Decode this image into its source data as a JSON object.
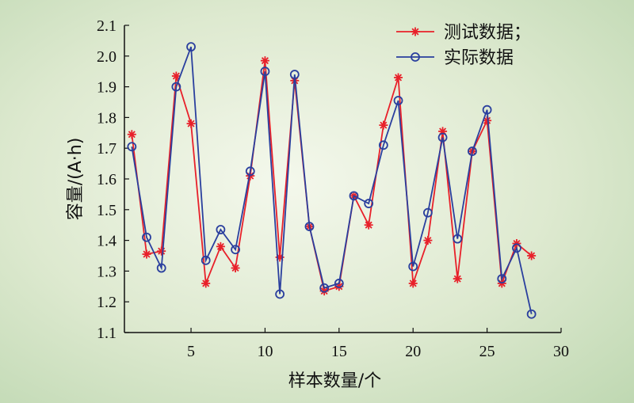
{
  "chart_data": {
    "type": "line",
    "xlabel": "样本数量/个",
    "ylabel": "容量/(A·h)",
    "xlim": [
      0.5,
      30
    ],
    "ylim": [
      1.1,
      2.1
    ],
    "xticks": [
      5,
      10,
      15,
      20,
      25,
      30
    ],
    "xtick_labels": [
      "5",
      "10",
      "15",
      "20",
      "25",
      "30"
    ],
    "yticks": [
      1.1,
      1.2,
      1.3,
      1.4,
      1.5,
      1.6,
      1.7,
      1.8,
      1.9,
      2.0,
      2.1
    ],
    "ytick_labels": [
      "1.1",
      "1.2",
      "1.3",
      "1.4",
      "1.5",
      "1.6",
      "1.7",
      "1.8",
      "1.9",
      "2.0",
      "2.1"
    ],
    "grid": false,
    "legend_position": "top-right",
    "x": [
      1,
      2,
      3,
      4,
      5,
      6,
      7,
      8,
      9,
      10,
      11,
      12,
      13,
      14,
      15,
      16,
      17,
      18,
      19,
      20,
      21,
      22,
      23,
      24,
      25,
      26,
      27,
      28
    ],
    "series": [
      {
        "name": "测试数据；",
        "color": "#e8202a",
        "marker": "star",
        "values": [
          1.745,
          1.355,
          1.365,
          1.935,
          1.78,
          1.26,
          1.38,
          1.31,
          1.61,
          1.985,
          1.345,
          1.92,
          1.445,
          1.235,
          1.25,
          1.545,
          1.45,
          1.775,
          1.93,
          1.26,
          1.4,
          1.755,
          1.275,
          1.69,
          1.79,
          1.26,
          1.39,
          1.35
        ]
      },
      {
        "name": "实际数据",
        "color": "#2a3f9e",
        "marker": "circle",
        "values": [
          1.705,
          1.41,
          1.31,
          1.9,
          2.03,
          1.335,
          1.435,
          1.37,
          1.625,
          1.95,
          1.225,
          1.94,
          1.445,
          1.245,
          1.26,
          1.545,
          1.52,
          1.71,
          1.855,
          1.315,
          1.49,
          1.735,
          1.405,
          1.69,
          1.825,
          1.275,
          1.375,
          1.16
        ]
      }
    ]
  }
}
